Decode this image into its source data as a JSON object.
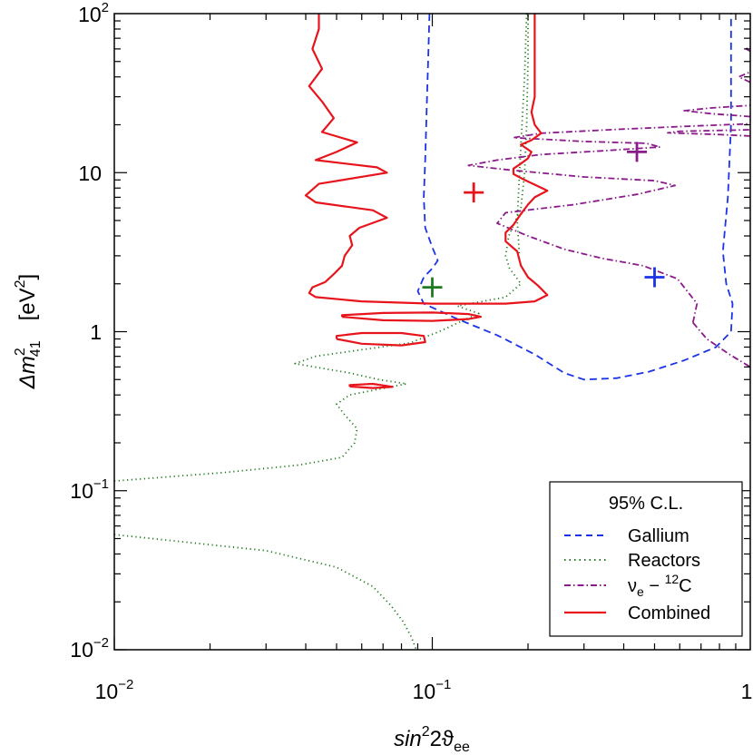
{
  "chart_data": {
    "type": "line",
    "xscale": "log",
    "yscale": "log",
    "xlim": [
      0.01,
      1
    ],
    "ylim": [
      0.01,
      100
    ],
    "x_ticks": [
      {
        "value": 0.01,
        "base": "10",
        "exp": "−2"
      },
      {
        "value": 0.1,
        "base": "10",
        "exp": "−1"
      },
      {
        "value": 1,
        "text": "1"
      }
    ],
    "y_ticks": [
      {
        "value": 0.01,
        "base": "10",
        "exp": "−2"
      },
      {
        "value": 0.1,
        "base": "10",
        "exp": "−1"
      },
      {
        "value": 1,
        "text": "1"
      },
      {
        "value": 10,
        "text": "10"
      },
      {
        "value": 100,
        "base": "10",
        "exp": "2"
      }
    ],
    "xlabel": {
      "base": "sin",
      "sup": "2",
      "rest": "2ϑ",
      "sub": "ee"
    },
    "ylabel": {
      "delta": "Δm",
      "sup": "2",
      "sub": "41",
      "unit_open": "[eV",
      "unit_sup": "2",
      "unit_close": "]"
    },
    "legend": {
      "title": "95% C.L.",
      "placement": "bottom-right",
      "entries": [
        {
          "label": "Gallium",
          "color": "#1a33e6",
          "style": "dashed"
        },
        {
          "label": "Reactors",
          "color": "#1f7a1f",
          "style": "dotted"
        },
        {
          "label_main": "ν",
          "label_sub": "e",
          "label_mid": " − ",
          "label_sup": "12",
          "label_end": "C",
          "color": "#8b1a8b",
          "style": "dashdot"
        },
        {
          "label": "Combined",
          "color": "#e8141c",
          "style": "solid"
        }
      ]
    },
    "best_fit_points": [
      {
        "series": "Gallium",
        "x": 0.5,
        "y": 2.2,
        "color": "#1a33e6"
      },
      {
        "series": "Reactors",
        "x": 0.1,
        "y": 1.9,
        "color": "#1f7a1f"
      },
      {
        "series": "nu_e-12C",
        "x": 0.44,
        "y": 13.5,
        "color": "#8b1a8b"
      },
      {
        "series": "Combined",
        "x": 0.135,
        "y": 7.5,
        "color": "#e8141c"
      }
    ],
    "series": [
      {
        "name": "Gallium",
        "color": "#1a33e6",
        "style": "dashed",
        "curves": [
          [
            [
              0.098,
              100
            ],
            [
              0.097,
              50
            ],
            [
              0.096,
              25
            ],
            [
              0.095,
              12
            ],
            [
              0.094,
              7
            ],
            [
              0.095,
              4.5
            ],
            [
              0.1,
              3.4
            ],
            [
              0.104,
              2.8
            ],
            [
              0.1,
              2.5
            ],
            [
              0.094,
              2.2
            ],
            [
              0.09,
              1.8
            ],
            [
              0.094,
              1.5
            ],
            [
              0.12,
              1.2
            ],
            [
              0.16,
              0.95
            ],
            [
              0.21,
              0.72
            ],
            [
              0.26,
              0.55
            ],
            [
              0.3,
              0.5
            ],
            [
              0.38,
              0.51
            ],
            [
              0.48,
              0.56
            ],
            [
              0.62,
              0.66
            ],
            [
              0.78,
              0.8
            ],
            [
              0.87,
              1.0
            ],
            [
              0.88,
              1.5
            ],
            [
              0.84,
              2.0
            ],
            [
              0.82,
              3.2
            ],
            [
              0.85,
              7
            ],
            [
              0.87,
              20
            ],
            [
              0.87,
              100
            ]
          ]
        ]
      },
      {
        "name": "Reactors",
        "color": "#1f7a1f",
        "style": "dotted",
        "curves": [
          [
            [
              0.01,
              0.115
            ],
            [
              0.022,
              0.13
            ],
            [
              0.038,
              0.145
            ],
            [
              0.052,
              0.162
            ],
            [
              0.057,
              0.2
            ],
            [
              0.058,
              0.245
            ],
            [
              0.053,
              0.3
            ],
            [
              0.05,
              0.35
            ],
            [
              0.055,
              0.4
            ],
            [
              0.07,
              0.44
            ],
            [
              0.083,
              0.47
            ],
            [
              0.068,
              0.5
            ],
            [
              0.055,
              0.55
            ],
            [
              0.037,
              0.63
            ],
            [
              0.043,
              0.7
            ],
            [
              0.06,
              0.77
            ],
            [
              0.085,
              0.85
            ],
            [
              0.105,
              1.0
            ],
            [
              0.13,
              1.22
            ],
            [
              0.14,
              1.3
            ],
            [
              0.12,
              1.45
            ],
            [
              0.17,
              1.65
            ],
            [
              0.19,
              2.0
            ],
            [
              0.175,
              2.5
            ],
            [
              0.17,
              3.0
            ],
            [
              0.174,
              4
            ],
            [
              0.19,
              6
            ],
            [
              0.195,
              10
            ],
            [
              0.198,
              20
            ],
            [
              0.2,
              50
            ],
            [
              0.2,
              100
            ]
          ],
          [
            [
              0.01,
              0.053
            ],
            [
              0.03,
              0.042
            ],
            [
              0.05,
              0.033
            ],
            [
              0.065,
              0.025
            ],
            [
              0.074,
              0.019
            ],
            [
              0.081,
              0.015
            ],
            [
              0.086,
              0.012
            ],
            [
              0.089,
              0.01
            ]
          ],
          [
            [
              0.198,
              100
            ],
            [
              0.195,
              40
            ],
            [
              0.19,
              15
            ],
            [
              0.187,
              8
            ],
            [
              0.185,
              5
            ],
            [
              0.188,
              3
            ]
          ]
        ]
      },
      {
        "name": "nu_e-12C",
        "color": "#8b1a8b",
        "style": "dashdot",
        "curves": [
          [
            [
              0.66,
              1.14
            ],
            [
              0.73,
              0.9
            ],
            [
              0.86,
              0.72
            ],
            [
              1.0,
              0.6
            ]
          ],
          [
            [
              0.66,
              1.14
            ],
            [
              0.68,
              1.5
            ],
            [
              0.59,
              2.15
            ],
            [
              0.46,
              2.6
            ],
            [
              0.34,
              2.9
            ],
            [
              0.26,
              3.3
            ],
            [
              0.2,
              4.0
            ],
            [
              0.16,
              4.8
            ],
            [
              0.17,
              5.6
            ],
            [
              0.28,
              6.3
            ],
            [
              0.44,
              7.3
            ],
            [
              0.58,
              8.3
            ],
            [
              0.5,
              8.9
            ],
            [
              0.3,
              9.4
            ],
            [
              0.175,
              10.4
            ],
            [
              0.13,
              11.1
            ],
            [
              0.16,
              12.0
            ],
            [
              0.22,
              13.0
            ],
            [
              0.34,
              13.7
            ],
            [
              0.52,
              14.5
            ],
            [
              0.47,
              15.3
            ],
            [
              0.3,
              15.7
            ],
            [
              0.18,
              16.6
            ],
            [
              0.22,
              17.7
            ],
            [
              0.38,
              18.7
            ],
            [
              0.65,
              19.6
            ],
            [
              1.0,
              20.3
            ]
          ],
          [
            [
              1.0,
              17
            ],
            [
              0.78,
              17.4
            ],
            [
              0.55,
              17.8
            ],
            [
              0.6,
              18.2
            ],
            [
              1.0,
              18.6
            ]
          ],
          [
            [
              1.0,
              22.5
            ],
            [
              0.75,
              23.5
            ],
            [
              0.62,
              24.5
            ],
            [
              0.75,
              25.5
            ],
            [
              1.0,
              26.5
            ]
          ],
          [
            [
              1.0,
              37
            ],
            [
              0.92,
              40
            ],
            [
              1.0,
              43
            ]
          ],
          [
            [
              1.0,
              58
            ],
            [
              0.97,
              60
            ],
            [
              1.0,
              62
            ]
          ]
        ]
      },
      {
        "name": "Combined",
        "color": "#e8141c",
        "style": "solid",
        "curves": [
          [
            [
              0.044,
              100
            ],
            [
              0.044,
              80
            ],
            [
              0.042,
              60
            ],
            [
              0.045,
              45
            ],
            [
              0.041,
              35
            ],
            [
              0.045,
              28
            ],
            [
              0.049,
              22
            ],
            [
              0.045,
              18
            ],
            [
              0.058,
              15.5
            ],
            [
              0.05,
              13.5
            ],
            [
              0.043,
              12
            ],
            [
              0.067,
              10.8
            ],
            [
              0.072,
              10
            ],
            [
              0.044,
              8.5
            ],
            [
              0.04,
              7.2
            ],
            [
              0.043,
              6.5
            ],
            [
              0.065,
              5.8
            ],
            [
              0.072,
              5.2
            ],
            [
              0.059,
              4.5
            ],
            [
              0.055,
              4
            ],
            [
              0.056,
              3.5
            ],
            [
              0.053,
              3
            ],
            [
              0.052,
              2.6
            ],
            [
              0.049,
              2.3
            ],
            [
              0.046,
              2.05
            ],
            [
              0.042,
              1.9
            ],
            [
              0.041,
              1.75
            ],
            [
              0.043,
              1.65
            ],
            [
              0.06,
              1.55
            ],
            [
              0.1,
              1.5
            ],
            [
              0.17,
              1.5
            ],
            [
              0.21,
              1.55
            ],
            [
              0.23,
              1.7
            ],
            [
              0.215,
              1.95
            ],
            [
              0.2,
              2.2
            ],
            [
              0.19,
              2.6
            ],
            [
              0.185,
              3.2
            ],
            [
              0.17,
              3.7
            ],
            [
              0.17,
              4.2
            ],
            [
              0.18,
              4.7
            ],
            [
              0.19,
              5.5
            ],
            [
              0.2,
              6.3
            ],
            [
              0.21,
              7.0
            ],
            [
              0.23,
              7.7
            ],
            [
              0.21,
              8.4
            ],
            [
              0.195,
              9.0
            ],
            [
              0.18,
              9.8
            ],
            [
              0.18,
              10.6
            ],
            [
              0.19,
              11.4
            ],
            [
              0.2,
              12.3
            ],
            [
              0.205,
              13.5
            ],
            [
              0.19,
              15
            ],
            [
              0.205,
              16
            ],
            [
              0.22,
              17.7
            ],
            [
              0.21,
              20
            ],
            [
              0.205,
              24
            ],
            [
              0.21,
              30
            ],
            [
              0.21,
              40
            ],
            [
              0.21,
              60
            ],
            [
              0.21,
              100
            ]
          ],
          [
            [
              0.052,
              1.24
            ],
            [
              0.07,
              1.18
            ],
            [
              0.1,
              1.17
            ],
            [
              0.13,
              1.2
            ],
            [
              0.142,
              1.24
            ],
            [
              0.13,
              1.29
            ],
            [
              0.1,
              1.32
            ],
            [
              0.07,
              1.31
            ],
            [
              0.052,
              1.27
            ],
            [
              0.052,
              1.24
            ]
          ],
          [
            [
              0.05,
              0.9
            ],
            [
              0.06,
              0.84
            ],
            [
              0.08,
              0.82
            ],
            [
              0.095,
              0.86
            ],
            [
              0.094,
              0.94
            ],
            [
              0.08,
              0.98
            ],
            [
              0.06,
              0.98
            ],
            [
              0.05,
              0.94
            ],
            [
              0.05,
              0.9
            ]
          ],
          [
            [
              0.055,
              0.452
            ],
            [
              0.065,
              0.442
            ],
            [
              0.075,
              0.45
            ],
            [
              0.065,
              0.47
            ],
            [
              0.055,
              0.462
            ],
            [
              0.055,
              0.452
            ]
          ]
        ]
      }
    ]
  }
}
